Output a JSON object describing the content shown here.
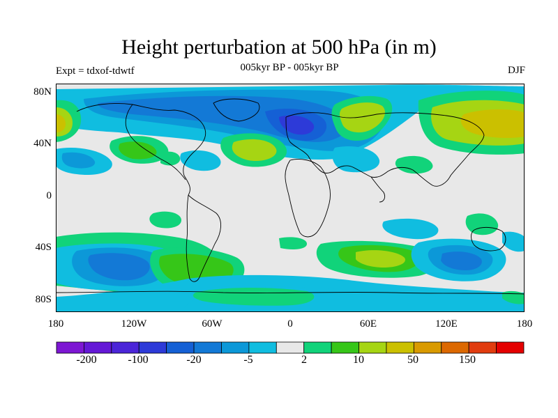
{
  "title": "Height perturbation at 500 hPa (in m)",
  "subtitle": "005kyr BP - 005kyr BP",
  "experiment": "Expt = tdxof-tdwtf",
  "season": "DJF",
  "map": {
    "lat_labels": [
      "80N",
      "40N",
      "0",
      "40S",
      "80S"
    ],
    "lon_labels": [
      "180",
      "120W",
      "60W",
      "0",
      "60E",
      "120E",
      "180"
    ],
    "land_mask_color": "#e8e8e8"
  },
  "colorbar": {
    "colors": [
      "#7d17d3",
      "#6418d6",
      "#4b25d8",
      "#2d3ad8",
      "#1560d5",
      "#1379d6",
      "#0c98d8",
      "#10bde0",
      "#e8e8e8",
      "#11d37a",
      "#36c618",
      "#a6d513",
      "#cbc000",
      "#d99a00",
      "#dc6800",
      "#e13c0f",
      "#e40000"
    ],
    "labels": [
      "-200",
      "-100",
      "-20",
      "-5",
      "2",
      "10",
      "50",
      "150"
    ]
  }
}
